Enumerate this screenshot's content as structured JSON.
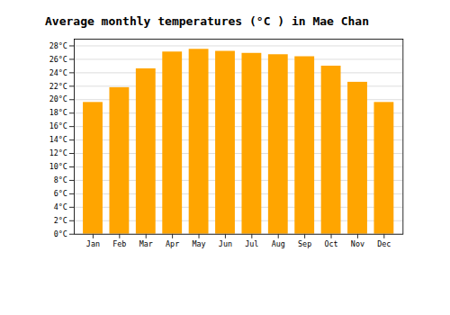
{
  "chart_data": {
    "type": "bar",
    "title": "Average monthly temperatures (°C ) in Mae Chan",
    "categories": [
      "Jan",
      "Feb",
      "Mar",
      "Apr",
      "May",
      "Jun",
      "Jul",
      "Aug",
      "Sep",
      "Oct",
      "Nov",
      "Dec"
    ],
    "values": [
      19.6,
      21.8,
      24.6,
      27.1,
      27.5,
      27.2,
      26.9,
      26.7,
      26.4,
      25.0,
      22.6,
      19.6
    ],
    "color": "#FFA500",
    "ylim": [
      0,
      29
    ],
    "yticks": [
      {
        "value": 0,
        "label": "0°C"
      },
      {
        "value": 2,
        "label": "2°C"
      },
      {
        "value": 4,
        "label": "4°C"
      },
      {
        "value": 6,
        "label": "6°C"
      },
      {
        "value": 8,
        "label": "8°C"
      },
      {
        "value": 10,
        "label": "10°C"
      },
      {
        "value": 12,
        "label": "12°C"
      },
      {
        "value": 14,
        "label": "14°C"
      },
      {
        "value": 16,
        "label": "16°C"
      },
      {
        "value": 18,
        "label": "18°C"
      },
      {
        "value": 20,
        "label": "20°C"
      },
      {
        "value": 22,
        "label": "22°C"
      },
      {
        "value": 24,
        "label": "24°C"
      },
      {
        "value": 26,
        "label": "26°C"
      },
      {
        "value": 28,
        "label": "28°C"
      }
    ],
    "grid": true
  }
}
